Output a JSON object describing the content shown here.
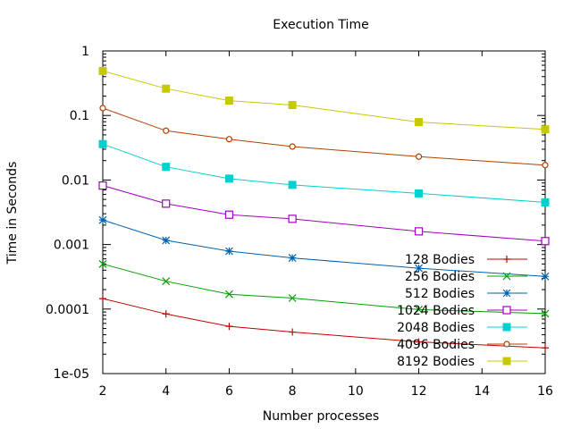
{
  "chart_data": {
    "type": "line",
    "title": "Execution Time",
    "xlabel": "Number processes",
    "ylabel": "Time in Seconds",
    "xlim": [
      2,
      16
    ],
    "ylim": [
      1e-05,
      1
    ],
    "yscale": "log",
    "grid": false,
    "legend_position": "bottom-right",
    "x_ticks": [
      "2",
      "4",
      "6",
      "8",
      "10",
      "12",
      "14",
      "16"
    ],
    "y_ticks": [
      "1e-05",
      "0.0001",
      "0.001",
      "0.01",
      "0.1",
      "1"
    ],
    "x": [
      2,
      4,
      6,
      8,
      12,
      16
    ],
    "series": [
      {
        "name": "128 Bodies",
        "color": "#c00000",
        "marker": "plus",
        "values": [
          0.000145,
          8.4e-05,
          5.4e-05,
          4.4e-05,
          3.1e-05,
          2.5e-05
        ]
      },
      {
        "name": "256 Bodies",
        "color": "#00a000",
        "marker": "cross",
        "values": [
          0.0005,
          0.00027,
          0.00017,
          0.000148,
          9.8e-05,
          8.5e-05
        ]
      },
      {
        "name": "512 Bodies",
        "color": "#0060ad",
        "marker": "star",
        "values": [
          0.0024,
          0.00116,
          0.00079,
          0.00062,
          0.00043,
          0.00032
        ]
      },
      {
        "name": "1024 Bodies",
        "color": "#a000c0",
        "marker": "square-open",
        "values": [
          0.0082,
          0.0043,
          0.0029,
          0.0025,
          0.0016,
          0.00113
        ]
      },
      {
        "name": "2048 Bodies",
        "color": "#00d0d0",
        "marker": "square-filled",
        "values": [
          0.036,
          0.016,
          0.0105,
          0.0084,
          0.0062,
          0.0045
        ]
      },
      {
        "name": "4096 Bodies",
        "color": "#b04000",
        "marker": "circle-open",
        "values": [
          0.13,
          0.058,
          0.043,
          0.033,
          0.023,
          0.017
        ]
      },
      {
        "name": "8192 Bodies",
        "color": "#c8c800",
        "marker": "square-filled",
        "values": [
          0.49,
          0.26,
          0.17,
          0.145,
          0.079,
          0.061
        ]
      }
    ]
  }
}
